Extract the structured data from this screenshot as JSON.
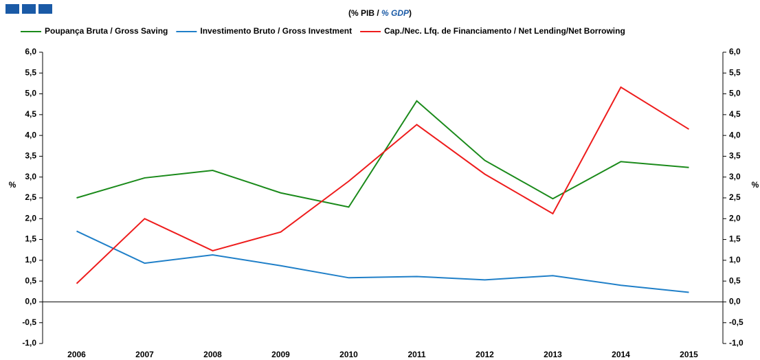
{
  "chart_data": {
    "type": "line",
    "title_parts": [
      "(% PIB / ",
      "% GDP",
      ")"
    ],
    "y_label": "%",
    "y2_label": "%",
    "categories": [
      "2006",
      "2007",
      "2008",
      "2009",
      "2010",
      "2011",
      "2012",
      "2013",
      "2014",
      "2015"
    ],
    "series": [
      {
        "name": "Poupança Bruta / Gross Saving",
        "color": "#1a8a1a",
        "values": [
          2.5,
          2.98,
          3.16,
          2.62,
          2.28,
          4.83,
          3.4,
          2.48,
          3.37,
          3.23
        ]
      },
      {
        "name": "Investimento Bruto / Gross Investment",
        "color": "#1f7fc8",
        "values": [
          1.7,
          0.93,
          1.13,
          0.87,
          0.58,
          0.61,
          0.53,
          0.63,
          0.4,
          0.23
        ]
      },
      {
        "name": "Cap./Nec. Lfq. de Financiamento / Net Lending/Net Borrowing",
        "color": "#ee1c1c",
        "values": [
          0.44,
          2.0,
          1.23,
          1.68,
          2.9,
          4.26,
          3.07,
          2.12,
          5.16,
          4.15
        ]
      }
    ],
    "ylim": [
      -1,
      6
    ],
    "yticks": [
      {
        "value": 6,
        "label": "6,0"
      },
      {
        "value": 5.5,
        "label": "5,5"
      },
      {
        "value": 5,
        "label": "5,0"
      },
      {
        "value": 4.5,
        "label": "4,5"
      },
      {
        "value": 4,
        "label": "4,0"
      },
      {
        "value": 3.5,
        "label": "3,5"
      },
      {
        "value": 3,
        "label": "3,0"
      },
      {
        "value": 2.5,
        "label": "2,5"
      },
      {
        "value": 2,
        "label": "2,0"
      },
      {
        "value": 1.5,
        "label": "1,5"
      },
      {
        "value": 1,
        "label": "1,0"
      },
      {
        "value": 0.5,
        "label": "0,5"
      },
      {
        "value": 0,
        "label": "0,0"
      },
      {
        "value": -0.5,
        "label": "-0,5"
      },
      {
        "value": -1,
        "label": "-1,0"
      }
    ],
    "y2lim": [
      -1,
      6
    ],
    "y2ticks": [
      {
        "value": 6,
        "label": "6,0"
      },
      {
        "value": 5.5,
        "label": "5,5"
      },
      {
        "value": 5,
        "label": "5,0"
      },
      {
        "value": 4.5,
        "label": "4,5"
      },
      {
        "value": 4,
        "label": "4,0"
      },
      {
        "value": 3.5,
        "label": "3,5"
      },
      {
        "value": 3,
        "label": "3,0"
      },
      {
        "value": 2.5,
        "label": "2,5"
      },
      {
        "value": 2,
        "label": "2,0"
      },
      {
        "value": 1.5,
        "label": "1,5"
      },
      {
        "value": 1,
        "label": "1,0"
      },
      {
        "value": 0.5,
        "label": "0,5"
      },
      {
        "value": 0,
        "label": "0,0"
      },
      {
        "value": -0.5,
        "label": "-0,5"
      },
      {
        "value": -1,
        "label": "-1,0"
      }
    ],
    "legend": "top"
  }
}
